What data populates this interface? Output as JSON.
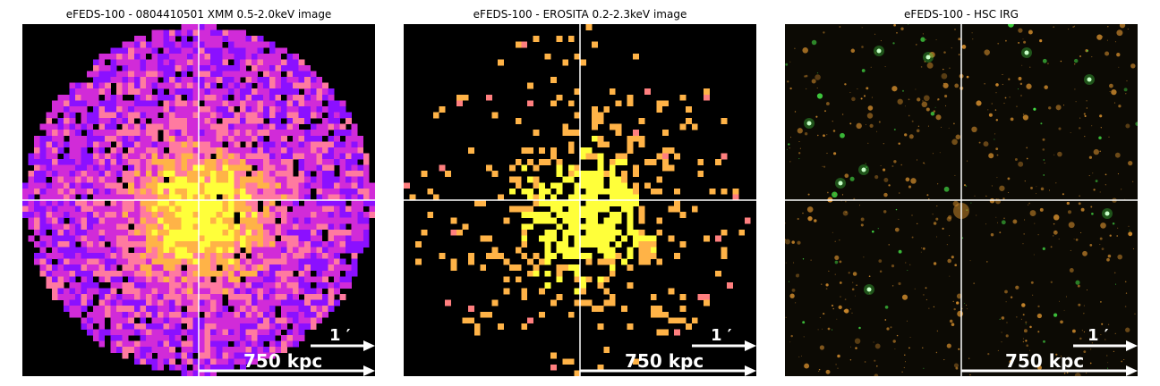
{
  "panels": [
    {
      "title": "eFEDS-100 - 0804410501 XMM 0.5-2.0keV image",
      "scale_arcmin": "1 ′",
      "scale_kpc": "750 kpc",
      "type": "xray_counts",
      "colormap": "plasma"
    },
    {
      "title": "eFEDS-100 -  EROSITA 0.2-2.3keV image",
      "scale_arcmin": "1 ′",
      "scale_kpc": "750 kpc",
      "type": "xray_counts_sparse",
      "colormap": "plasma"
    },
    {
      "title": "eFEDS-100 - HSC IRG",
      "scale_arcmin": "1 ′",
      "scale_kpc": "750 kpc",
      "type": "optical_rgb"
    }
  ],
  "chart_data": [
    {
      "type": "heatmap",
      "title": "eFEDS-100 - 0804410501 XMM 0.5-2.0keV image",
      "crosshair": "center",
      "colors": [
        "#000000",
        "#8b10ff",
        "#d12bd8",
        "#ff7aa0",
        "#ffb347",
        "#ffff3a"
      ]
    },
    {
      "type": "heatmap",
      "title": "eFEDS-100 -  EROSITA 0.2-2.3keV image",
      "crosshair": "center",
      "colors": [
        "#000000",
        "#ff7f7f",
        "#ffb347",
        "#ffff3a"
      ]
    },
    {
      "type": "heatmap",
      "title": "eFEDS-100 - HSC IRG",
      "crosshair": "center",
      "colors": [
        "#000000",
        "#c8862b",
        "#45e045"
      ]
    }
  ]
}
